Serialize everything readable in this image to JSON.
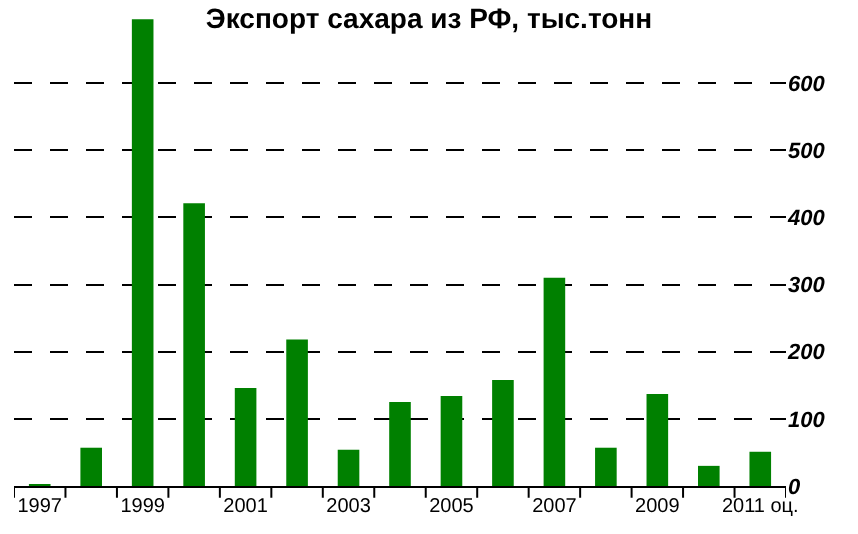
{
  "chart_data": {
    "type": "bar",
    "title": "Экспорт сахара из РФ, тыс.тонн",
    "categories": [
      "1997",
      null,
      "1999",
      null,
      "2001",
      null,
      "2003",
      null,
      "2005",
      null,
      "2007",
      null,
      "2009",
      null,
      "2011 оц."
    ],
    "values": [
      3,
      57,
      695,
      421,
      146,
      218,
      54,
      125,
      134,
      158,
      310,
      57,
      137,
      30,
      51
    ],
    "color": "#008000",
    "ylim": [
      0,
      700
    ],
    "yticks": [
      0,
      100,
      200,
      300,
      400,
      500,
      600
    ],
    "grid": "y"
  }
}
